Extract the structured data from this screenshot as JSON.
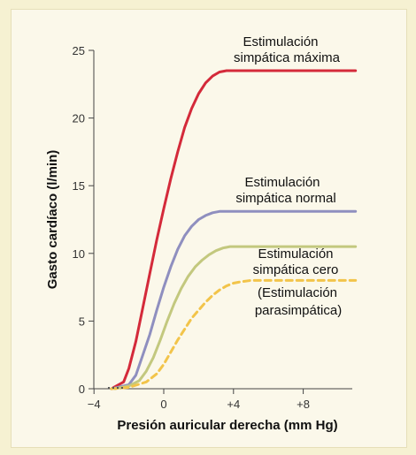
{
  "chart_data": {
    "type": "line",
    "xlabel": "Presión auricular derecha (mm Hg)",
    "ylabel": "Gasto cardíaco (l/min)",
    "xlim": [
      -4,
      12
    ],
    "ylim": [
      0,
      25
    ],
    "x_ticks": [
      -4,
      0,
      4,
      8
    ],
    "x_tick_labels": [
      "−4",
      "0",
      "+4",
      "+8"
    ],
    "y_ticks": [
      0,
      5,
      10,
      15,
      20,
      25
    ],
    "y_tick_labels": [
      "0",
      "5",
      "10",
      "15",
      "20",
      "25"
    ],
    "grid": false,
    "series": [
      {
        "name": "Estimulación simpática máxima",
        "color": "#d42a3a",
        "style": "solid",
        "x": [
          -3,
          -2.3,
          -2,
          -1.6,
          -1.2,
          -0.8,
          -0.4,
          0,
          0.4,
          0.8,
          1.2,
          1.6,
          2,
          2.4,
          2.8,
          3.2,
          3.6,
          4,
          4.8,
          11
        ],
        "y": [
          0,
          0.5,
          1.5,
          3.5,
          6,
          8.5,
          11,
          13.3,
          15.5,
          17.5,
          19.3,
          20.7,
          21.8,
          22.6,
          23.1,
          23.4,
          23.5,
          23.5,
          23.5,
          23.5
        ]
      },
      {
        "name": "Estimulación simpática normal",
        "color": "#8f8fbf",
        "style": "solid",
        "x": [
          -3,
          -2,
          -1.6,
          -1.2,
          -0.8,
          -0.4,
          0,
          0.4,
          0.8,
          1.2,
          1.6,
          2,
          2.4,
          2.8,
          3.2,
          3.6,
          4,
          5,
          11
        ],
        "y": [
          0,
          0.3,
          1,
          2.5,
          4,
          5.8,
          7.5,
          9,
          10.3,
          11.3,
          12,
          12.5,
          12.8,
          13,
          13.1,
          13.1,
          13.1,
          13.1,
          13.1
        ]
      },
      {
        "name": "Estimulación simpática cero",
        "color": "#c3c87e",
        "style": "solid",
        "x": [
          -2.8,
          -2,
          -1.4,
          -1,
          -0.6,
          -0.2,
          0.2,
          0.6,
          1,
          1.4,
          1.8,
          2.2,
          2.6,
          3,
          3.4,
          3.8,
          4.2,
          5,
          11
        ],
        "y": [
          0,
          0.2,
          0.6,
          1.3,
          2.3,
          3.6,
          5,
          6.3,
          7.4,
          8.3,
          9,
          9.5,
          9.9,
          10.2,
          10.4,
          10.5,
          10.5,
          10.5,
          10.5
        ]
      },
      {
        "name": "Estimulación parasimpática",
        "color": "#f2c44a",
        "style": "dashed",
        "x": [
          -3,
          -2,
          -1,
          -0.4,
          0,
          0.4,
          0.8,
          1.2,
          1.6,
          2,
          2.4,
          2.8,
          3.2,
          3.6,
          4,
          4.4,
          5,
          6,
          11
        ],
        "y": [
          0,
          0.1,
          0.5,
          1.1,
          1.8,
          2.7,
          3.6,
          4.4,
          5.2,
          5.8,
          6.4,
          6.9,
          7.3,
          7.6,
          7.8,
          7.9,
          8,
          8,
          8
        ]
      }
    ],
    "annotations": {
      "max_line1": "Estimulación",
      "max_line2": "simpática máxima",
      "normal_line1": "Estimulación",
      "normal_line2": "simpática normal",
      "zero_line1": "Estimulación",
      "zero_line2": "simpática cero",
      "para_line1": "(Estimulación",
      "para_line2": "parasimpática)"
    }
  }
}
